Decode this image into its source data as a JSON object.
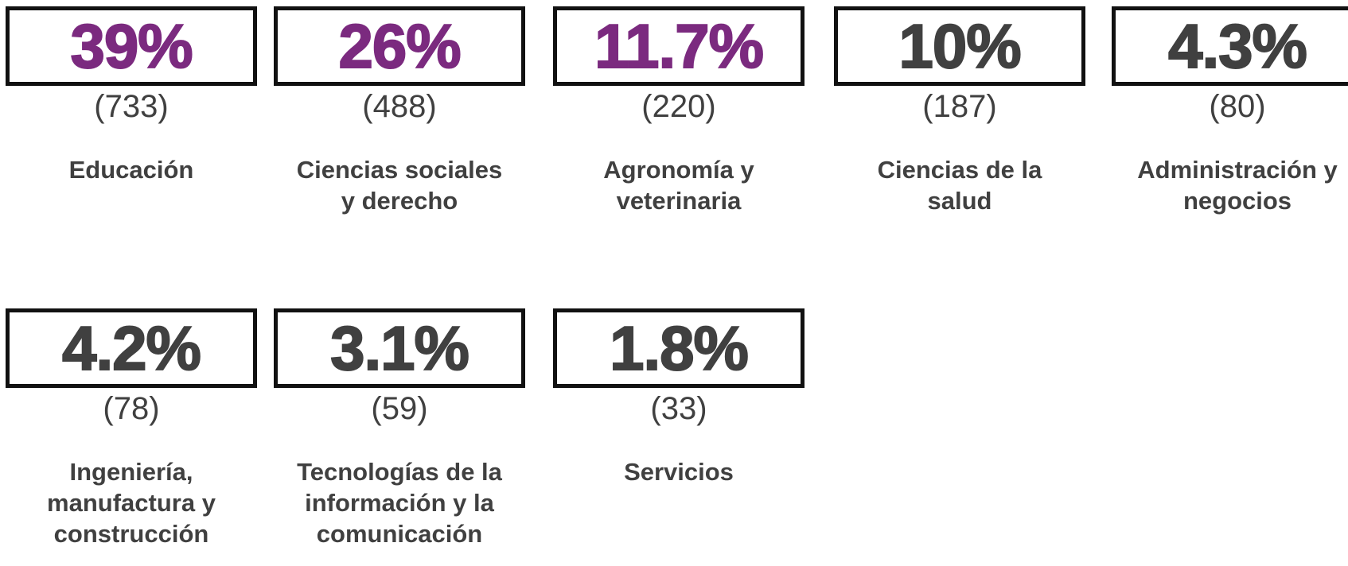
{
  "items": [
    {
      "percent": "39%",
      "count": "(733)",
      "label": "Educación",
      "color": "#7b2a7f"
    },
    {
      "percent": "26%",
      "count": "(488)",
      "label": "Ciencias sociales y derecho",
      "color": "#7b2a7f"
    },
    {
      "percent": "11.7%",
      "count": "(220)",
      "label": "Agronomía y veterinaria",
      "color": "#7b2a7f"
    },
    {
      "percent": "10%",
      "count": "(187)",
      "label": "Ciencias de la salud",
      "color": "#404040"
    },
    {
      "percent": "4.3%",
      "count": "(80)",
      "label": "Administración y negocios",
      "color": "#404040"
    },
    {
      "percent": "4.2%",
      "count": "(78)",
      "label": "Ingeniería, manufactura y construcción",
      "color": "#404040"
    },
    {
      "percent": "3.1%",
      "count": "(59)",
      "label": "Tecnologías de la información y la comunicación",
      "color": "#404040"
    },
    {
      "percent": "1.8%",
      "count": "(33)",
      "label": "Servicios",
      "color": "#404040"
    }
  ]
}
